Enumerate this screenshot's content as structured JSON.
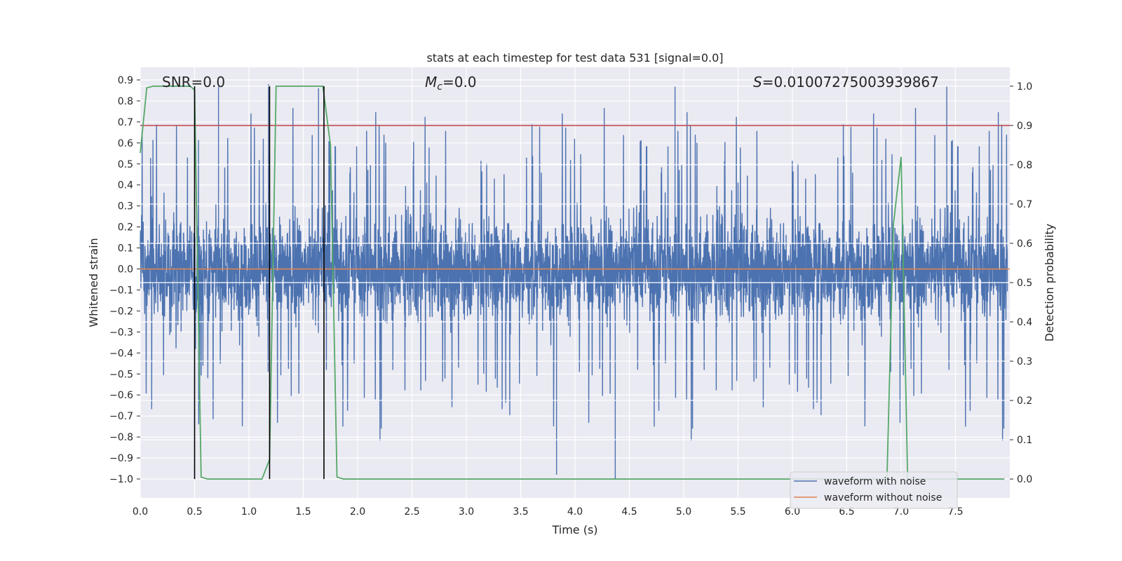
{
  "chart_data": {
    "type": "line",
    "title": "stats at each timestep for test data 531 [signal=0.0]",
    "xlabel": "Time (s)",
    "ylabel_left": "Whitened strain",
    "ylabel_right": "Detection probability",
    "xlim": [
      0.0,
      8.0
    ],
    "ylim_left": [
      -1.09,
      0.96
    ],
    "ylim_right": [
      -0.048,
      1.048
    ],
    "x_ticks": [
      "0.0",
      "0.5",
      "1.0",
      "1.5",
      "2.0",
      "2.5",
      "3.0",
      "3.5",
      "4.0",
      "4.5",
      "5.0",
      "5.5",
      "6.0",
      "6.5",
      "7.0",
      "7.5"
    ],
    "y_ticks_left": [
      "0.9",
      "0.8",
      "0.7",
      "0.6",
      "0.5",
      "0.4",
      "0.3",
      "0.2",
      "0.1",
      "0.0",
      "−0.1",
      "−0.2",
      "−0.3",
      "−0.4",
      "−0.5",
      "−0.6",
      "−0.7",
      "−0.8",
      "−0.9",
      "−1.0"
    ],
    "y_ticks_right": [
      "1.0",
      "0.9",
      "0.8",
      "0.7",
      "0.6",
      "0.5",
      "0.4",
      "0.3",
      "0.2",
      "0.1",
      "0.0"
    ],
    "annotations": {
      "snr": "SNR=0.0",
      "mc_symbol": "M",
      "mc_subscript": "c",
      "mc_value": "=0.0",
      "s_symbol": "S",
      "s_value": "=0.01007275003939867"
    },
    "threshold": {
      "axis": "right",
      "value": 0.9,
      "color": "#c44e52"
    },
    "vertical_lines": [
      0.5,
      1.19,
      1.69
    ],
    "series": [
      {
        "name": "waveform with noise",
        "axis": "left",
        "color": "#4c72b0",
        "kind": "noise",
        "sample_rate": 1024
      },
      {
        "name": "waveform without noise",
        "axis": "left",
        "color": "#dd8452",
        "value": 0.0
      },
      {
        "name": "detection probability",
        "axis": "right",
        "color": "#55a868",
        "x": [
          0.0,
          0.06,
          0.12,
          0.2,
          0.3,
          0.4,
          0.46,
          0.5,
          0.56,
          0.62,
          0.7,
          0.8,
          0.9,
          1.0,
          1.1,
          1.12,
          1.19,
          1.25,
          1.3,
          1.4,
          1.5,
          1.6,
          1.68,
          1.75,
          1.81,
          1.87,
          2.0,
          3.0,
          4.0,
          5.0,
          6.0,
          6.5,
          6.8,
          6.87,
          6.93,
          7.0,
          7.06,
          7.12,
          7.5,
          7.95
        ],
        "y": [
          0.83,
          0.996,
          1.0,
          1.0,
          1.0,
          1.0,
          1.0,
          0.99,
          0.005,
          0.0,
          0.0,
          0.0,
          0.0,
          0.0,
          0.0,
          0.0,
          0.05,
          1.0,
          1.0,
          1.0,
          1.0,
          1.0,
          1.0,
          0.85,
          0.005,
          0.0,
          0.0,
          0.0,
          0.0,
          0.0,
          0.0,
          0.0,
          0.0,
          0.0,
          0.65,
          0.82,
          0.0,
          0.0,
          0.0,
          0.0
        ]
      }
    ],
    "legend": {
      "position": "lower-right",
      "entries": [
        {
          "label": "waveform with noise",
          "color": "#4c72b0"
        },
        {
          "label": "waveform without noise",
          "color": "#dd8452"
        }
      ]
    },
    "style": {
      "background": "#eaeaf2",
      "grid_color": "#ffffff"
    }
  }
}
